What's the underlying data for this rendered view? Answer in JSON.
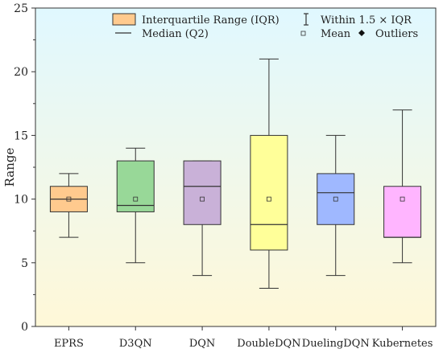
{
  "chart_data": {
    "type": "boxplot",
    "title": "",
    "xlabel": "",
    "ylabel": "Range",
    "ylim": [
      0,
      25
    ],
    "yticks": [
      0,
      5,
      10,
      15,
      20,
      25
    ],
    "categories": [
      "EPRS",
      "D3QN",
      "DQN",
      "DoubleDQN",
      "DuelingDQN",
      "Kubernetes"
    ],
    "boxes": [
      {
        "category": "EPRS",
        "whisker_low": 7,
        "q1": 9,
        "median": 10,
        "q3": 11,
        "whisker_high": 12,
        "mean": 10,
        "color": "#FFCA8E"
      },
      {
        "category": "D3QN",
        "whisker_low": 5,
        "q1": 9,
        "median": 9.5,
        "q3": 13,
        "whisker_high": 14,
        "mean": 10,
        "color": "#98D898"
      },
      {
        "category": "DQN",
        "whisker_low": 4,
        "q1": 8,
        "median": 11,
        "q3": 13,
        "whisker_high": 13,
        "mean": 10,
        "color": "#C9B1D8"
      },
      {
        "category": "DoubleDQN",
        "whisker_low": 3,
        "q1": 6,
        "median": 8,
        "q3": 15,
        "whisker_high": 21,
        "mean": 10,
        "color": "#FFFF99"
      },
      {
        "category": "DuelingDQN",
        "whisker_low": 4,
        "q1": 8,
        "median": 10.5,
        "q3": 12,
        "whisker_high": 15,
        "mean": 10,
        "color": "#9FB8FF"
      },
      {
        "category": "Kubernetes",
        "whisker_low": 5,
        "q1": 7,
        "median": 7,
        "q3": 11,
        "whisker_high": 17,
        "mean": 10,
        "color": "#FFB5FF"
      }
    ],
    "legend": {
      "placement": "top-right",
      "iqr_label": "Interquartile Range (IQR)",
      "whisker_label": "Within 1.5 × IQR",
      "median_label": "Median (Q2)",
      "mean_label": "Mean",
      "outlier_label": "Outliers",
      "iqr_swatch_color": "#FFCA8E"
    },
    "background_gradient": [
      "#E0F8FF",
      "#FFF8D8"
    ]
  }
}
